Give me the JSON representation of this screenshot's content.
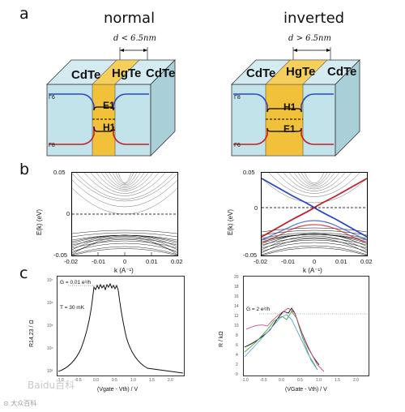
{
  "panel_labels": {
    "a": "a",
    "b": "b",
    "c": "c"
  },
  "panel_a": {
    "normal": {
      "title": "normal",
      "condition": "d < 6.5nm",
      "left_layer": "CdTe",
      "center_layer": "HgTe",
      "right_layer": "CdTe",
      "upper_level": "E1",
      "lower_level": "H1",
      "band_label_top": "Γ6",
      "band_label_bottom": "Γ8"
    },
    "inverted": {
      "title": "inverted",
      "condition": "d > 6.5nm",
      "left_layer": "CdTe",
      "center_layer": "HgTe",
      "right_layer": "CdTe",
      "upper_level": "H1",
      "lower_level": "E1",
      "band_label_top": "Γ8",
      "band_label_bottom": "Γ6"
    },
    "colors": {
      "hgte": "#f2c13a",
      "cdte": "#bfe0e8",
      "top_band": "#2b46c8",
      "bottom_band": "#c0202c"
    }
  },
  "panel_b": {
    "ylabel": "E(k) (eV)",
    "xlabel": "k (A⁻¹)",
    "xticks": [
      "-0.02",
      "-0.01",
      "0",
      "0.01",
      "0.02"
    ],
    "yticks": [
      "0.05",
      "0",
      "-0.05"
    ]
  },
  "panel_c": {
    "left": {
      "ylabel": "R14,23 / Ω",
      "xlabel": "(Vgate - Vth) / V",
      "annotation_g": "G = 0.01 e²/h",
      "annotation_t": "T = 30 mK",
      "yticks": [
        "10⁷",
        "10⁶",
        "10⁵",
        "10⁴",
        "10³"
      ],
      "xticks": [
        "-1.0",
        "-0.5",
        "0.0",
        "0.5",
        "1.0",
        "1.5",
        "2.0"
      ]
    },
    "right": {
      "ylabel": "R / kΩ",
      "xlabel": "(VGate - Vth) / V",
      "annotation_g": "G = 2 e²/h",
      "yticks": [
        "20",
        "18",
        "16",
        "14",
        "12",
        "10",
        "8",
        "6",
        "4",
        "2",
        "0"
      ],
      "xticks": [
        "-1.0",
        "-0.5",
        "0.0",
        "0.5",
        "1.0",
        "1.5",
        "2.0"
      ]
    }
  },
  "watermark": {
    "brand": "Baidu百科",
    "small": "⊙ 大众百科"
  }
}
